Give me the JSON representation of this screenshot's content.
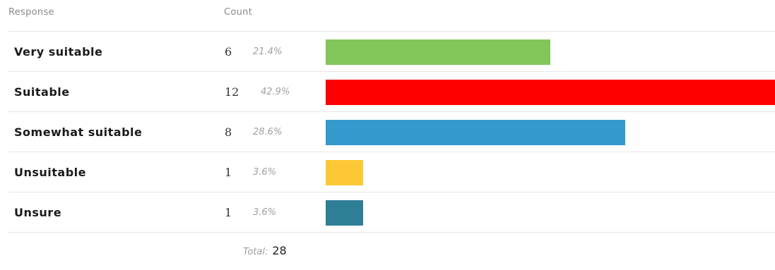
{
  "header": {
    "response": "Response",
    "count": "Count"
  },
  "chart_data": {
    "type": "bar",
    "orientation": "horizontal",
    "categories": [
      "Very suitable",
      "Suitable",
      "Somewhat suitable",
      "Unsuitable",
      "Unsure"
    ],
    "values": [
      6,
      12,
      8,
      1,
      1
    ],
    "percentages": [
      "21.4%",
      "42.9%",
      "28.6%",
      "3.6%",
      "3.6%"
    ],
    "colors": [
      "#82c65b",
      "#ff0000",
      "#3499cb",
      "#fdc836",
      "#2e7f96"
    ],
    "grid": false
  },
  "total": {
    "label": "Total:",
    "value": "28"
  }
}
